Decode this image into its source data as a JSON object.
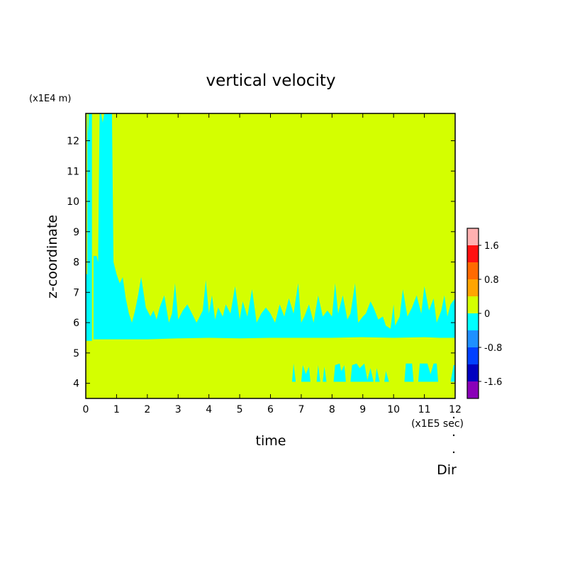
{
  "chart_data": {
    "type": "heatmap",
    "title": "vertical velocity",
    "xlabel": "time",
    "ylabel": "z-coordinate",
    "x_unit": "(x1E5 sec)",
    "y_unit": "(x1E4 m)",
    "xlim": [
      0,
      12
    ],
    "ylim": [
      3.5,
      12.9
    ],
    "x_ticks": [
      0,
      1,
      2,
      3,
      4,
      5,
      6,
      7,
      8,
      9,
      10,
      11,
      12
    ],
    "y_ticks": [
      4,
      5,
      6,
      7,
      8,
      9,
      10,
      11,
      12
    ],
    "grid": false,
    "background_level": "0 to 0.4",
    "colorbar": {
      "levels": [
        {
          "from": 1.6,
          "to": 2.0,
          "color": "#ffb0b0"
        },
        {
          "from": 1.2,
          "to": 1.6,
          "color": "#ff1010"
        },
        {
          "from": 0.8,
          "to": 1.2,
          "color": "#ff6a00"
        },
        {
          "from": 0.4,
          "to": 0.8,
          "color": "#ffa500"
        },
        {
          "from": 0.0,
          "to": 0.4,
          "color": "#d4ff00"
        },
        {
          "from": -0.4,
          "to": 0.0,
          "color": "#00ffff"
        },
        {
          "from": -0.8,
          "to": -0.4,
          "color": "#1e90ff"
        },
        {
          "from": -1.2,
          "to": -0.8,
          "color": "#0040ff"
        },
        {
          "from": -1.6,
          "to": -1.2,
          "color": "#0000c0"
        },
        {
          "from": -2.0,
          "to": -1.6,
          "color": "#8a00b8"
        }
      ],
      "tick_labels": [
        "1.6",
        "0.8",
        "0",
        "-0.8",
        "-1.6"
      ],
      "tick_values": [
        1.6,
        0.8,
        0,
        -0.8,
        -1.6
      ]
    },
    "negative_regions": [
      {
        "level": "-0.4 to 0",
        "boundary": [
          [
            0.0,
            5.4
          ],
          [
            0.0,
            7.6
          ],
          [
            0.05,
            7.6
          ],
          [
            0.05,
            12.9
          ],
          [
            0.06,
            12.9
          ],
          [
            0.08,
            12.2
          ],
          [
            0.1,
            12.9
          ],
          [
            0.2,
            12.9
          ],
          [
            0.2,
            5.45
          ],
          [
            0.25,
            5.45
          ],
          [
            0.25,
            8.2
          ],
          [
            0.35,
            8.2
          ],
          [
            0.4,
            8.0
          ],
          [
            0.45,
            12.9
          ],
          [
            0.5,
            12.9
          ],
          [
            0.55,
            12.6
          ],
          [
            0.6,
            12.9
          ],
          [
            0.85,
            12.9
          ],
          [
            0.9,
            8.0
          ],
          [
            1.0,
            7.6
          ],
          [
            1.1,
            7.3
          ],
          [
            1.2,
            7.5
          ],
          [
            1.3,
            6.8
          ],
          [
            1.4,
            6.3
          ],
          [
            1.5,
            6.0
          ],
          [
            1.6,
            6.4
          ],
          [
            1.7,
            6.9
          ],
          [
            1.8,
            7.5
          ],
          [
            1.95,
            6.5
          ],
          [
            2.1,
            6.2
          ],
          [
            2.2,
            6.4
          ],
          [
            2.3,
            6.1
          ],
          [
            2.4,
            6.5
          ],
          [
            2.55,
            6.9
          ],
          [
            2.7,
            6.0
          ],
          [
            2.8,
            6.3
          ],
          [
            2.9,
            7.3
          ],
          [
            3.0,
            6.1
          ],
          [
            3.15,
            6.4
          ],
          [
            3.3,
            6.6
          ],
          [
            3.45,
            6.3
          ],
          [
            3.6,
            6.0
          ],
          [
            3.8,
            6.4
          ],
          [
            3.9,
            7.4
          ],
          [
            4.0,
            6.3
          ],
          [
            4.1,
            6.9
          ],
          [
            4.2,
            6.1
          ],
          [
            4.3,
            6.5
          ],
          [
            4.45,
            6.2
          ],
          [
            4.55,
            6.6
          ],
          [
            4.7,
            6.3
          ],
          [
            4.85,
            7.2
          ],
          [
            5.0,
            6.1
          ],
          [
            5.1,
            6.7
          ],
          [
            5.25,
            6.2
          ],
          [
            5.4,
            7.1
          ],
          [
            5.55,
            6.0
          ],
          [
            5.7,
            6.3
          ],
          [
            5.85,
            6.5
          ],
          [
            6.0,
            6.3
          ],
          [
            6.15,
            6.0
          ],
          [
            6.3,
            6.6
          ],
          [
            6.45,
            6.2
          ],
          [
            6.6,
            6.8
          ],
          [
            6.75,
            6.3
          ],
          [
            6.9,
            7.3
          ],
          [
            7.0,
            6.0
          ],
          [
            7.1,
            6.2
          ],
          [
            7.25,
            6.6
          ],
          [
            7.4,
            6.0
          ],
          [
            7.55,
            6.9
          ],
          [
            7.7,
            6.2
          ],
          [
            7.85,
            6.4
          ],
          [
            8.0,
            6.2
          ],
          [
            8.1,
            7.3
          ],
          [
            8.2,
            6.3
          ],
          [
            8.35,
            6.9
          ],
          [
            8.5,
            6.1
          ],
          [
            8.6,
            6.3
          ],
          [
            8.75,
            7.3
          ],
          [
            8.85,
            6.0
          ],
          [
            9.0,
            6.2
          ],
          [
            9.1,
            6.3
          ],
          [
            9.25,
            6.7
          ],
          [
            9.35,
            6.5
          ],
          [
            9.5,
            6.1
          ],
          [
            9.65,
            6.2
          ],
          [
            9.75,
            5.9
          ],
          [
            9.9,
            5.8
          ],
          [
            10.0,
            6.6
          ],
          [
            10.05,
            5.9
          ],
          [
            10.2,
            6.2
          ],
          [
            10.3,
            7.1
          ],
          [
            10.45,
            6.2
          ],
          [
            10.6,
            6.5
          ],
          [
            10.75,
            6.9
          ],
          [
            10.9,
            6.3
          ],
          [
            11.0,
            7.2
          ],
          [
            11.15,
            6.4
          ],
          [
            11.3,
            6.8
          ],
          [
            11.4,
            6.0
          ],
          [
            11.55,
            6.4
          ],
          [
            11.65,
            6.9
          ],
          [
            11.75,
            6.2
          ],
          [
            11.85,
            6.6
          ],
          [
            12.0,
            6.8
          ],
          [
            12.0,
            5.5
          ],
          [
            11.5,
            5.5
          ],
          [
            11.0,
            5.52
          ],
          [
            10.0,
            5.5
          ],
          [
            9.0,
            5.52
          ],
          [
            8.0,
            5.5
          ],
          [
            7.0,
            5.5
          ],
          [
            6.0,
            5.5
          ],
          [
            5.0,
            5.48
          ],
          [
            4.0,
            5.5
          ],
          [
            3.0,
            5.48
          ],
          [
            2.0,
            5.45
          ],
          [
            1.0,
            5.45
          ],
          [
            0.5,
            5.45
          ],
          [
            0.2,
            5.45
          ],
          [
            0.2,
            5.4
          ]
        ]
      },
      {
        "level": "-0.4 to 0",
        "boundary": [
          [
            6.7,
            4.05
          ],
          [
            6.75,
            4.65
          ],
          [
            6.82,
            4.05
          ]
        ]
      },
      {
        "level": "-0.4 to 0",
        "boundary": [
          [
            7.0,
            4.05
          ],
          [
            7.05,
            4.6
          ],
          [
            7.15,
            4.3
          ],
          [
            7.25,
            4.55
          ],
          [
            7.3,
            4.05
          ]
        ]
      },
      {
        "level": "-0.4 to 0",
        "boundary": [
          [
            7.5,
            4.05
          ],
          [
            7.55,
            4.6
          ],
          [
            7.62,
            4.05
          ]
        ]
      },
      {
        "level": "-0.4 to 0",
        "boundary": [
          [
            7.7,
            4.05
          ],
          [
            7.75,
            4.55
          ],
          [
            7.82,
            4.05
          ]
        ]
      },
      {
        "level": "-0.4 to 0",
        "boundary": [
          [
            8.05,
            4.05
          ],
          [
            8.1,
            4.6
          ],
          [
            8.25,
            4.65
          ],
          [
            8.3,
            4.4
          ],
          [
            8.4,
            4.6
          ],
          [
            8.45,
            4.05
          ]
        ]
      },
      {
        "level": "-0.4 to 0",
        "boundary": [
          [
            8.6,
            4.05
          ],
          [
            8.65,
            4.6
          ],
          [
            8.8,
            4.65
          ],
          [
            8.9,
            4.5
          ],
          [
            9.05,
            4.65
          ],
          [
            9.15,
            4.1
          ],
          [
            9.25,
            4.5
          ],
          [
            9.35,
            4.05
          ]
        ]
      },
      {
        "level": "-0.4 to 0",
        "boundary": [
          [
            9.4,
            4.05
          ],
          [
            9.45,
            4.5
          ],
          [
            9.55,
            4.05
          ]
        ]
      },
      {
        "level": "-0.4 to 0",
        "boundary": [
          [
            9.7,
            4.05
          ],
          [
            9.75,
            4.4
          ],
          [
            9.85,
            4.05
          ]
        ]
      },
      {
        "level": "-0.4 to 0",
        "boundary": [
          [
            10.35,
            4.05
          ],
          [
            10.4,
            4.65
          ],
          [
            10.6,
            4.65
          ],
          [
            10.65,
            4.05
          ]
        ]
      },
      {
        "level": "-0.4 to 0",
        "boundary": [
          [
            10.8,
            4.05
          ],
          [
            10.85,
            4.65
          ],
          [
            11.1,
            4.65
          ],
          [
            11.2,
            4.3
          ],
          [
            11.3,
            4.65
          ],
          [
            11.4,
            4.65
          ],
          [
            11.45,
            4.05
          ]
        ]
      },
      {
        "level": "-0.4 to 0",
        "boundary": [
          [
            11.85,
            4.05
          ],
          [
            11.95,
            4.6
          ],
          [
            12.0,
            4.6
          ],
          [
            12.0,
            4.05
          ]
        ]
      }
    ],
    "footer_label": "Dir"
  }
}
